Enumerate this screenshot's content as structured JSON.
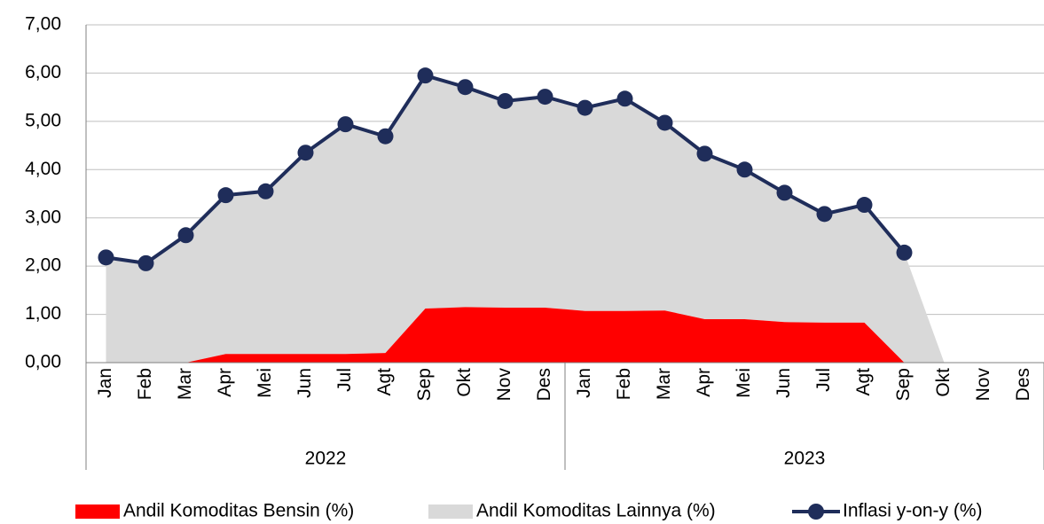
{
  "chart_data": {
    "type": "area",
    "categories": [
      "Jan",
      "Feb",
      "Mar",
      "Apr",
      "Mei",
      "Jun",
      "Jul",
      "Agt",
      "Sep",
      "Okt",
      "Nov",
      "Des",
      "Jan",
      "Feb",
      "Mar",
      "Apr",
      "Mei",
      "Jun",
      "Jul",
      "Agt",
      "Sep",
      "Okt",
      "Nov",
      "Des"
    ],
    "groups": [
      "2022",
      "2023"
    ],
    "series": [
      {
        "name": "Andil Komoditas Bensin (%)",
        "color": "#ff0000",
        "type": "area",
        "values": [
          0,
          0,
          0,
          0.18,
          0.18,
          0.18,
          0.18,
          0.2,
          1.12,
          1.15,
          1.14,
          1.14,
          1.07,
          1.07,
          1.08,
          0.9,
          0.9,
          0.84,
          0.83,
          0.83,
          0,
          0,
          null,
          null
        ]
      },
      {
        "name": "Andil Komoditas Lainnya (%)",
        "color": "#d9d9d9",
        "type": "area",
        "values": [
          2.18,
          2.06,
          2.64,
          3.29,
          3.37,
          4.17,
          4.76,
          4.49,
          4.83,
          4.56,
          4.28,
          4.37,
          4.21,
          4.4,
          3.89,
          3.43,
          3.1,
          2.68,
          2.25,
          2.44,
          2.28,
          0,
          null,
          null
        ]
      },
      {
        "name": "Inflasi y-on-y (%)",
        "color": "#1f2d5a",
        "type": "line",
        "values": [
          2.18,
          2.06,
          2.64,
          3.47,
          3.55,
          4.35,
          4.94,
          4.69,
          5.95,
          5.71,
          5.42,
          5.51,
          5.28,
          5.47,
          4.97,
          4.33,
          4.0,
          3.52,
          3.08,
          3.27,
          2.28,
          null,
          null,
          null
        ]
      }
    ],
    "ylim": [
      0,
      7
    ],
    "yticks": [
      {
        "value": 0,
        "label": "0,00"
      },
      {
        "value": 1,
        "label": "1,00"
      },
      {
        "value": 2,
        "label": "2,00"
      },
      {
        "value": 3,
        "label": "3,00"
      },
      {
        "value": 4,
        "label": "4,00"
      },
      {
        "value": 5,
        "label": "5,00"
      },
      {
        "value": 6,
        "label": "6,00"
      },
      {
        "value": 7,
        "label": "7,00"
      }
    ],
    "grid": true
  }
}
